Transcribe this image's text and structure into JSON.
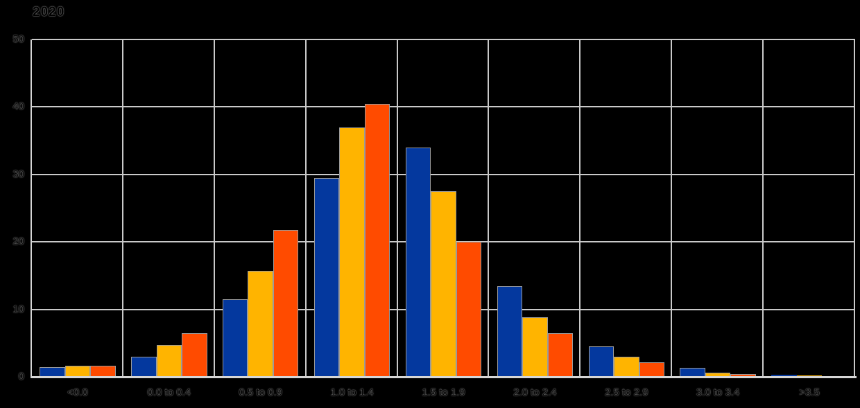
{
  "chart_data": {
    "type": "bar",
    "title": "2020",
    "xlabel": "",
    "ylabel": "",
    "ylim": [
      0,
      50
    ],
    "yticks": [
      0,
      10,
      20,
      30,
      40,
      50
    ],
    "grid": true,
    "legend": "none",
    "categories": [
      "<0.0",
      "0.0 to 0.4",
      "0.5 to 0.9",
      "1.0 to 1.4",
      "1.5 to 1.9",
      "2.0 to 2.4",
      "2.5 to 2.9",
      "3.0 to 3.4",
      ">3.5"
    ],
    "series": [
      {
        "name": "blue",
        "color": "#04389e",
        "values": [
          1.4,
          3.0,
          11.5,
          29.5,
          34.0,
          13.5,
          4.5,
          1.3,
          0.3
        ]
      },
      {
        "name": "yellow",
        "color": "#ffb400",
        "values": [
          1.6,
          4.7,
          15.7,
          37.0,
          27.5,
          8.8,
          3.0,
          0.6,
          0.2
        ]
      },
      {
        "name": "orange",
        "color": "#ff4b00",
        "values": [
          1.6,
          6.5,
          21.8,
          40.5,
          20.0,
          6.5,
          2.2,
          0.4,
          0.1
        ]
      }
    ]
  },
  "style_colors": {
    "background": "#000000",
    "gridline": "#c9c9c9",
    "axis_line": "#d6d6d6",
    "bar_border": "#9b9b9b",
    "text": "#000000"
  }
}
